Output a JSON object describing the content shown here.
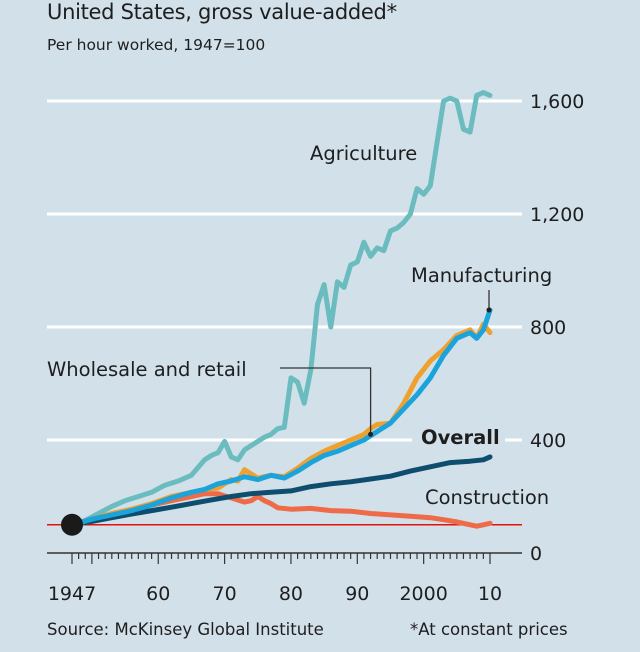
{
  "chart_data": {
    "type": "line",
    "title": "United States, gross value-added*",
    "subtitle": "Per hour worked, 1947=100",
    "source": "Source: McKinsey Global Institute",
    "footnote": "*At constant prices",
    "xlabel": "",
    "ylabel": "",
    "xlim": [
      1947,
      2010
    ],
    "ylim": [
      0,
      1600
    ],
    "yticks": [
      0,
      400,
      800,
      1200,
      1600
    ],
    "ytick_labels": [
      "0",
      "400",
      "800",
      "1,200",
      "1,600"
    ],
    "xticks": [
      1947,
      1960,
      1970,
      1980,
      1990,
      2000,
      2010
    ],
    "xtick_labels": [
      "1947",
      "60",
      "70",
      "80",
      "90",
      "2000",
      "10"
    ],
    "grid": true,
    "baseline": 100,
    "start_marker": {
      "x": 1947,
      "y": 100
    },
    "series": [
      {
        "name": "Agriculture",
        "color": "#6bbcbe",
        "x": [
          1947,
          1949,
          1951,
          1953,
          1955,
          1957,
          1959,
          1961,
          1963,
          1965,
          1967,
          1968,
          1969,
          1970,
          1971,
          1972,
          1973,
          1974,
          1975,
          1976,
          1977,
          1978,
          1979,
          1980,
          1981,
          1982,
          1983,
          1984,
          1985,
          1986,
          1987,
          1988,
          1989,
          1990,
          1991,
          1992,
          1993,
          1994,
          1995,
          1996,
          1997,
          1998,
          1999,
          2000,
          2001,
          2002,
          2003,
          2004,
          2005,
          2006,
          2007,
          2008,
          2009,
          2010
        ],
        "values": [
          100,
          115,
          140,
          165,
          185,
          200,
          215,
          240,
          255,
          275,
          330,
          345,
          355,
          395,
          340,
          330,
          365,
          380,
          395,
          410,
          420,
          440,
          445,
          620,
          605,
          530,
          650,
          880,
          950,
          800,
          960,
          940,
          1020,
          1030,
          1100,
          1050,
          1080,
          1070,
          1140,
          1150,
          1170,
          1200,
          1290,
          1270,
          1300,
          1450,
          1600,
          1610,
          1600,
          1500,
          1490,
          1620,
          1630,
          1620
        ]
      },
      {
        "name": "Manufacturing",
        "color": "#1ba3db",
        "x": [
          1947,
          1950,
          1953,
          1956,
          1959,
          1962,
          1965,
          1967,
          1969,
          1971,
          1973,
          1975,
          1977,
          1979,
          1981,
          1983,
          1985,
          1987,
          1989,
          1991,
          1993,
          1995,
          1997,
          1999,
          2001,
          2003,
          2005,
          2007,
          2008,
          2009,
          2010
        ],
        "values": [
          100,
          120,
          135,
          150,
          170,
          195,
          215,
          225,
          245,
          255,
          270,
          260,
          275,
          265,
          290,
          320,
          345,
          360,
          380,
          400,
          430,
          460,
          510,
          560,
          620,
          700,
          760,
          780,
          760,
          790,
          860
        ]
      },
      {
        "name": "Wholesale and retail",
        "color": "#f0a02c",
        "x": [
          1947,
          1950,
          1953,
          1956,
          1959,
          1962,
          1965,
          1967,
          1969,
          1971,
          1972,
          1973,
          1975,
          1976,
          1977,
          1979,
          1981,
          1983,
          1985,
          1987,
          1989,
          1991,
          1992,
          1993,
          1995,
          1997,
          1999,
          2001,
          2003,
          2005,
          2007,
          2008,
          2009,
          2010
        ],
        "values": [
          100,
          120,
          140,
          155,
          175,
          200,
          215,
          225,
          230,
          260,
          255,
          295,
          265,
          270,
          275,
          270,
          300,
          335,
          360,
          380,
          400,
          420,
          440,
          455,
          460,
          530,
          620,
          680,
          720,
          770,
          790,
          760,
          810,
          780
        ]
      },
      {
        "name": "Overall",
        "color": "#0f4d6e",
        "x": [
          1947,
          1950,
          1953,
          1956,
          1959,
          1962,
          1965,
          1968,
          1971,
          1974,
          1977,
          1980,
          1983,
          1986,
          1989,
          1992,
          1995,
          1998,
          2001,
          2004,
          2007,
          2009,
          2010
        ],
        "values": [
          100,
          112,
          125,
          138,
          150,
          162,
          175,
          188,
          200,
          210,
          215,
          220,
          235,
          245,
          252,
          262,
          272,
          290,
          305,
          320,
          325,
          330,
          340
        ]
      },
      {
        "name": "Construction",
        "color": "#ef6a47",
        "x": [
          1947,
          1950,
          1953,
          1956,
          1959,
          1962,
          1965,
          1967,
          1969,
          1971,
          1973,
          1974,
          1975,
          1976,
          1977,
          1978,
          1980,
          1983,
          1986,
          1989,
          1992,
          1995,
          1998,
          2001,
          2003,
          2005,
          2007,
          2008,
          2009,
          2010
        ],
        "values": [
          100,
          120,
          135,
          150,
          170,
          185,
          200,
          210,
          210,
          195,
          180,
          185,
          200,
          185,
          175,
          160,
          155,
          158,
          150,
          148,
          140,
          135,
          130,
          125,
          118,
          110,
          100,
          95,
          100,
          105
        ]
      }
    ],
    "annotations": [
      {
        "text": "Agriculture",
        "series": "Agriculture"
      },
      {
        "text": "Manufacturing",
        "series": "Manufacturing",
        "leader_line": true
      },
      {
        "text": "Wholesale and retail",
        "series": "Wholesale and retail",
        "leader_line": true
      },
      {
        "text": "Overall",
        "series": "Overall",
        "bold": true
      },
      {
        "text": "Construction",
        "series": "Construction"
      }
    ]
  }
}
